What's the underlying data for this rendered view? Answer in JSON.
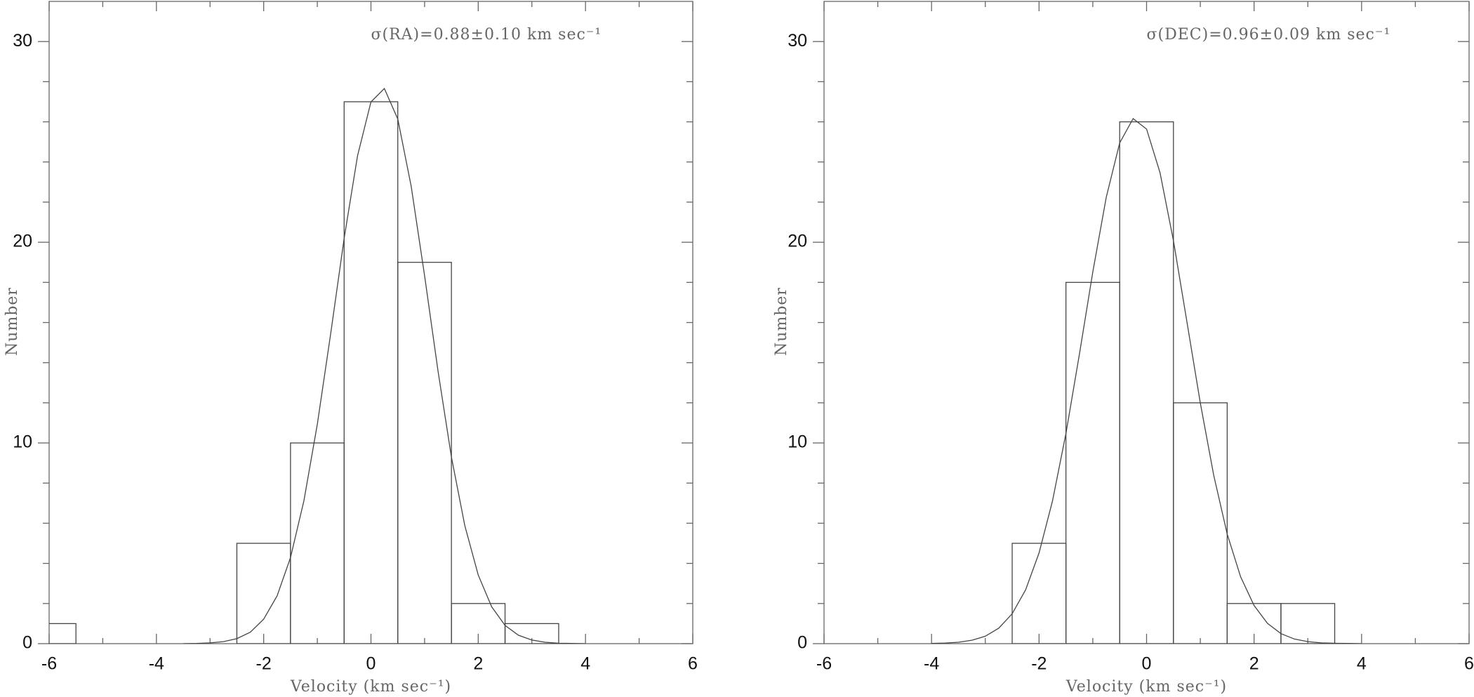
{
  "chart_data": [
    {
      "type": "histogram",
      "annotation": "σ(RA)=0.88±0.10 km sec⁻¹",
      "xlabel": "Velocity (km sec⁻¹)",
      "ylabel": "Number",
      "bins": [
        -6.5,
        -5.5,
        -4.5,
        -3.5,
        -2.5,
        -1.5,
        -0.5,
        0.5,
        1.5,
        2.5,
        3.5
      ],
      "values": [
        1,
        0,
        0,
        0,
        5,
        10,
        27,
        19,
        2,
        1
      ],
      "fit_x": [
        -3.5,
        -3.25,
        -3,
        -2.75,
        -2.5,
        -2.25,
        -2,
        -1.75,
        -1.5,
        -1.25,
        -1,
        -0.75,
        -0.5,
        -0.25,
        0,
        0.25,
        0.5,
        0.75,
        1,
        1.25,
        1.5,
        1.75,
        2,
        2.25,
        2.5,
        2.75,
        3,
        3.25,
        3.5,
        3.75,
        4
      ],
      "fit_values": [
        0,
        0.01,
        0.04,
        0.1,
        0.25,
        0.57,
        1.22,
        2.38,
        4.29,
        7.12,
        10.93,
        15.46,
        20.19,
        24.31,
        26.99,
        27.66,
        26.14,
        22.79,
        18.33,
        13.59,
        9.3,
        5.88,
        3.42,
        1.84,
        0.91,
        0.42,
        0.18,
        0.07,
        0.02,
        0.01,
        0
      ],
      "color": "#444444",
      "xlim": [
        -6,
        6
      ],
      "xticks": [
        -6,
        -4,
        -2,
        0,
        2,
        4,
        6
      ],
      "xminorticks": [
        -5,
        -3,
        -1,
        1,
        3,
        5
      ],
      "ylim": [
        0,
        32
      ],
      "yticks": [
        0,
        10,
        20,
        30
      ],
      "yminorticks": [
        2,
        4,
        6,
        8,
        12,
        14,
        16,
        18,
        22,
        24,
        26,
        28
      ]
    },
    {
      "type": "histogram",
      "annotation": "σ(DEC)=0.96±0.09 km sec⁻¹",
      "xlabel": "Velocity (km sec⁻¹)",
      "ylabel": "Number",
      "bins": [
        -2.5,
        -1.5,
        -0.5,
        0.5,
        1.5,
        2.5,
        3.5
      ],
      "values": [
        5,
        18,
        26,
        12,
        2,
        2
      ],
      "fit_x": [
        -4,
        -3.75,
        -3.5,
        -3.25,
        -3,
        -2.75,
        -2.5,
        -2.25,
        -2,
        -1.75,
        -1.5,
        -1.25,
        -1,
        -0.75,
        -0.5,
        -0.25,
        0,
        0.25,
        0.5,
        0.75,
        1,
        1.25,
        1.5,
        1.75,
        2,
        2.25,
        2.5,
        2.75,
        3,
        3.25,
        3.5,
        3.75,
        4
      ],
      "fit_values": [
        0.01,
        0.03,
        0.07,
        0.17,
        0.37,
        0.77,
        1.49,
        2.68,
        4.52,
        7.11,
        10.47,
        14.41,
        18.52,
        22.24,
        24.95,
        26.16,
        25.64,
        23.47,
        20.08,
        16.05,
        11.99,
        8.38,
        5.46,
        3.33,
        1.9,
        1.01,
        0.5,
        0.23,
        0.1,
        0.04,
        0.02,
        0.01,
        0
      ],
      "color": "#444444",
      "xlim": [
        -6,
        6
      ],
      "xticks": [
        -6,
        -4,
        -2,
        0,
        2,
        4,
        6
      ],
      "xminorticks": [
        -5,
        -3,
        -1,
        1,
        3,
        5
      ],
      "ylim": [
        0,
        32
      ],
      "yticks": [
        0,
        10,
        20,
        30
      ],
      "yminorticks": [
        2,
        4,
        6,
        8,
        12,
        14,
        16,
        18,
        22,
        24,
        26,
        28
      ]
    }
  ]
}
